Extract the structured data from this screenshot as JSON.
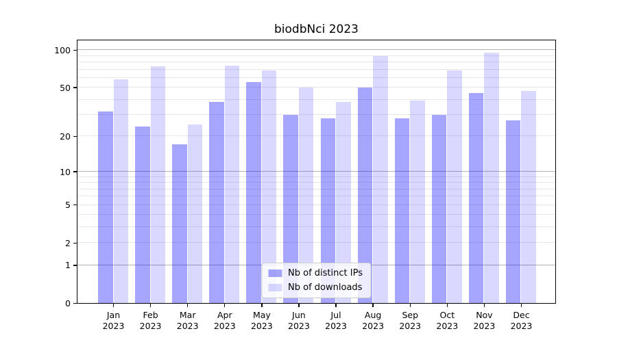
{
  "title": "biodbNci 2023",
  "chart_data": {
    "type": "bar",
    "title": "biodbNci 2023",
    "scale": "log1p",
    "ylim": [
      0,
      119
    ],
    "grid": true,
    "categories": [
      {
        "month": "Jan",
        "year": "2023"
      },
      {
        "month": "Feb",
        "year": "2023"
      },
      {
        "month": "Mar",
        "year": "2023"
      },
      {
        "month": "Apr",
        "year": "2023"
      },
      {
        "month": "May",
        "year": "2023"
      },
      {
        "month": "Jun",
        "year": "2023"
      },
      {
        "month": "Jul",
        "year": "2023"
      },
      {
        "month": "Aug",
        "year": "2023"
      },
      {
        "month": "Sep",
        "year": "2023"
      },
      {
        "month": "Oct",
        "year": "2023"
      },
      {
        "month": "Nov",
        "year": "2023"
      },
      {
        "month": "Dec",
        "year": "2023"
      }
    ],
    "series": [
      {
        "name": "Nb of distinct IPs",
        "color": "rgba(0, 0, 255, 0.35)",
        "values": [
          32,
          24,
          17,
          38,
          55,
          30,
          28,
          50,
          28,
          30,
          45,
          27
        ]
      },
      {
        "name": "Nb of downloads",
        "color": "rgba(0, 0, 255, 0.15)",
        "values": [
          58,
          74,
          25,
          75,
          68,
          50,
          38,
          89,
          39,
          68,
          95,
          47
        ]
      }
    ],
    "y_axis": {
      "tick_values": [
        100,
        50,
        20,
        10,
        5,
        2,
        1,
        0
      ],
      "tick_labels": [
        "100",
        "50",
        "20",
        "10",
        "5",
        "2",
        "1",
        "0"
      ],
      "major_gridlines": [
        1,
        10,
        100
      ],
      "minor_gridlines": [
        2,
        3,
        4,
        5,
        6,
        7,
        8,
        9,
        20,
        30,
        40,
        50,
        60,
        70,
        80,
        90
      ]
    },
    "legend": {
      "position": "lower center",
      "items": [
        "Nb of distinct IPs",
        "Nb of downloads"
      ]
    },
    "colors": {
      "major_grid": "#b3b3b3",
      "minor_grid": "#e7e7e7",
      "spine": "#000000"
    }
  }
}
